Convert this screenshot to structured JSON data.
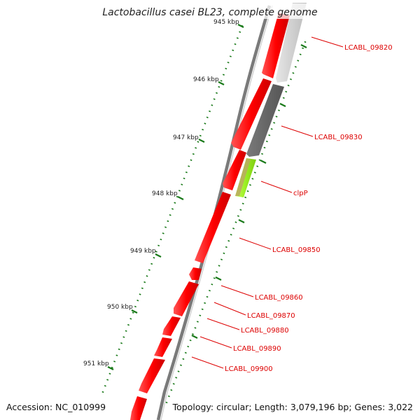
{
  "title": "Lactobacillus casei BL23, complete genome",
  "accession": "Accession: NC_010999",
  "topology": "Topology: circular; Length: 3,079,196 bp; Genes: 3,022",
  "scale_ticks": [
    {
      "label": "945 kbp",
      "kbp": 945
    },
    {
      "label": "946 kbp",
      "kbp": 946
    },
    {
      "label": "947 kbp",
      "kbp": 947
    },
    {
      "label": "948 kbp",
      "kbp": 948
    },
    {
      "label": "949 kbp",
      "kbp": 949
    },
    {
      "label": "950 kbp",
      "kbp": 950
    },
    {
      "label": "951 kbp",
      "kbp": 951
    }
  ],
  "gene_labels": [
    "LCABL_09820",
    "LCABL_09830",
    "clpP",
    "LCABL_09850",
    "LCABL_09860",
    "LCABL_09870",
    "LCABL_09880",
    "LCABL_09890",
    "LCABL_09900"
  ],
  "colors": {
    "forward_gene": "#ff0000",
    "reverse_gene_light": "#c8c8c8",
    "reverse_gene_dark": "#666666",
    "reverse_gene_lime": "#aaff33",
    "backbone": "#888888",
    "tick": "#1a7a1a",
    "label": "#dd0000"
  }
}
